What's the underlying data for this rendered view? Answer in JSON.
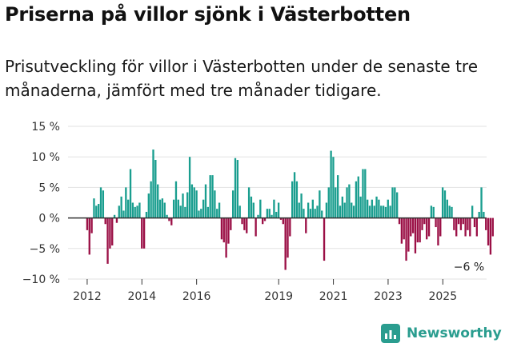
{
  "header": {
    "title": "Priserna på villor sjönk i Västerbotten",
    "subtitle": "Prisutveckling för villor i Västerbotten under de senaste tre månaderna, jämfört med tre månader tidigare."
  },
  "brand": {
    "name": "Newsworthy"
  },
  "colors": {
    "positive": "#1a9e8f",
    "negative": "#9b1046",
    "brand": "#2a9d8f",
    "grid": "#e2e2e2",
    "zero": "#333333"
  },
  "chart_data": {
    "type": "bar",
    "title": "Priserna på villor sjönk i Västerbotten",
    "ylabel": "",
    "ylim": [
      -10,
      15
    ],
    "yticks": [
      15,
      10,
      5,
      0,
      -5,
      -10
    ],
    "ytick_labels": [
      "15 %",
      "10 %",
      "5 %",
      "0 %",
      "−5 %",
      "−10 %"
    ],
    "xlim": [
      2011.3,
      2026.6
    ],
    "xticks": [
      2012,
      2014,
      2016,
      2019,
      2021,
      2023,
      2025
    ],
    "xtick_labels": [
      "2012",
      "2014",
      "2016",
      "2019",
      "2021",
      "2023",
      "2025"
    ],
    "grid": true,
    "annotation": {
      "label": "−6 %",
      "x": 2025.75,
      "y": -6
    },
    "start": 2012.0,
    "step": 0.0833,
    "values": [
      -2,
      -6,
      -2.5,
      3.2,
      2,
      2.3,
      5,
      4.5,
      -1,
      -7.5,
      -5,
      -4.5,
      0.5,
      -0.8,
      2,
      3.5,
      1.2,
      5,
      3,
      8,
      2.5,
      1.8,
      2,
      2.5,
      -5,
      -5,
      1,
      4,
      6,
      11.2,
      9.5,
      5.5,
      3,
      3.2,
      2.5,
      0.5,
      -0.5,
      -1.2,
      3,
      6,
      3,
      2,
      4,
      1.8,
      4.2,
      10,
      5.5,
      5,
      4.5,
      1.2,
      1.5,
      3,
      5.5,
      1.8,
      7,
      7,
      4.5,
      1.5,
      2.5,
      -3.5,
      -4,
      -6.5,
      -4.2,
      -2,
      4.5,
      9.8,
      9.5,
      2,
      -1,
      -2,
      -2.5,
      5,
      3.5,
      2.5,
      -3,
      0.5,
      3,
      -1,
      -0.5,
      1.5,
      1.5,
      0.5,
      3,
      1,
      2.5,
      -0.3,
      -1,
      -8.5,
      -6.5,
      -3,
      6,
      7.5,
      6,
      2.5,
      4,
      1.5,
      -2.5,
      2.5,
      1.5,
      3,
      1.5,
      2,
      4.5,
      1.2,
      -7,
      2.5,
      5,
      11,
      10,
      5,
      7,
      2,
      3.5,
      2.5,
      5,
      5.5,
      2.5,
      2,
      6,
      6.8,
      3.5,
      8,
      8,
      3,
      2,
      3,
      2,
      3.5,
      3,
      2,
      2,
      1.8,
      3,
      2,
      5,
      5,
      4.2,
      -1,
      -4.2,
      -3.5,
      -7,
      -5.5,
      -3,
      -2.5,
      -5.8,
      -4,
      -4,
      -2,
      -1,
      -3.5,
      -3,
      2,
      1.8,
      -1.5,
      -4.5,
      -3,
      5,
      4.5,
      3,
      2,
      1.8,
      -2,
      -3,
      -1,
      -2,
      -1,
      -3,
      -2,
      -3,
      2,
      -1.5,
      -3,
      1,
      5,
      1,
      -2,
      -4.5,
      -6,
      -3
    ]
  }
}
